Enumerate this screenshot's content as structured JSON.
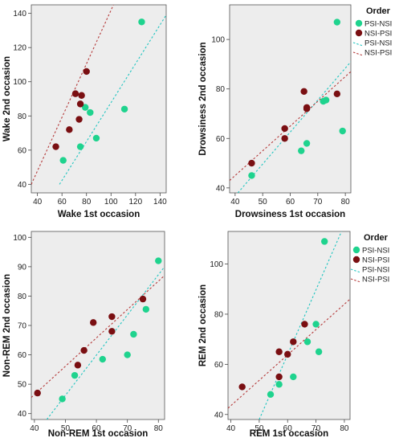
{
  "colors": {
    "psi_nsi": "#1fd38e",
    "nsi_psi": "#7a0f12",
    "psi_nsi_line": "#20c5c0",
    "nsi_psi_line": "#b53a3a",
    "plot_bg": "#ededed"
  },
  "legend": {
    "title": "Order",
    "items": [
      "PSI-NSI",
      "NSI-PSI",
      "PSI-NSI",
      "NSI-PSI"
    ]
  },
  "chart_data": [
    {
      "type": "scatter",
      "xlabel": "Wake 1st occasion",
      "ylabel": "Wake 2nd occasion",
      "xlim": [
        35,
        145
      ],
      "ylim": [
        35,
        145
      ],
      "xticks": [
        40,
        60,
        80,
        100,
        120,
        140
      ],
      "yticks": [
        40,
        60,
        80,
        100,
        120,
        140
      ],
      "legend": false,
      "series": [
        {
          "name": "PSI-NSI",
          "points": [
            [
              125,
              135
            ],
            [
              111,
              84
            ],
            [
              83,
              82
            ],
            [
              88,
              67
            ],
            [
              61,
              54
            ],
            [
              75,
              62
            ],
            [
              79,
              85
            ]
          ],
          "fit": [
            [
              58,
              40
            ],
            [
              145,
              139
            ]
          ]
        },
        {
          "name": "NSI-PSI",
          "points": [
            [
              55,
              62
            ],
            [
              66,
              72
            ],
            [
              71,
              93
            ],
            [
              74,
              78
            ],
            [
              75,
              87
            ],
            [
              76,
              92
            ],
            [
              80,
              106
            ]
          ],
          "fit": [
            [
              35,
              40
            ],
            [
              102,
              145
            ]
          ]
        }
      ]
    },
    {
      "type": "scatter",
      "xlabel": "Drowsiness 1st occasion",
      "ylabel": "Drowsiness 2nd occasion",
      "xlim": [
        38,
        82
      ],
      "ylim": [
        38,
        114
      ],
      "xticks": [
        40,
        50,
        60,
        70,
        80
      ],
      "yticks": [
        40,
        60,
        80,
        100
      ],
      "legend": true,
      "series": [
        {
          "name": "PSI-NSI",
          "points": [
            [
              77,
              107
            ],
            [
              79,
              63
            ],
            [
              72,
              75
            ],
            [
              73,
              75.5
            ],
            [
              66,
              58
            ],
            [
              64,
              55
            ],
            [
              46,
              45
            ]
          ],
          "fit": [
            [
              41,
              38
            ],
            [
              82,
              91
            ]
          ]
        },
        {
          "name": "NSI-PSI",
          "points": [
            [
              46,
              50
            ],
            [
              58,
              60
            ],
            [
              58,
              64
            ],
            [
              65,
              79
            ],
            [
              66,
              72
            ],
            [
              66,
              72.5
            ],
            [
              77,
              78
            ]
          ],
          "fit": [
            [
              38,
              43
            ],
            [
              82,
              87
            ]
          ]
        }
      ]
    },
    {
      "type": "scatter",
      "xlabel": "Non-REM 1st occasion",
      "ylabel": "Non-REM 2nd occasion",
      "xlim": [
        39,
        82
      ],
      "ylim": [
        38,
        102
      ],
      "xticks": [
        40,
        50,
        60,
        70,
        80
      ],
      "yticks": [
        40,
        50,
        60,
        70,
        80,
        90,
        100
      ],
      "legend": false,
      "series": [
        {
          "name": "PSI-NSI",
          "points": [
            [
              80,
              92
            ],
            [
              76,
              75.5
            ],
            [
              72,
              67
            ],
            [
              70,
              60
            ],
            [
              62,
              58.5
            ],
            [
              53,
              53
            ],
            [
              49,
              45
            ]
          ],
          "fit": [
            [
              44,
              38
            ],
            [
              82,
              90
            ]
          ]
        },
        {
          "name": "NSI-PSI",
          "points": [
            [
              41,
              47
            ],
            [
              54,
              56.5
            ],
            [
              56,
              61.5
            ],
            [
              59,
              71
            ],
            [
              65,
              73
            ],
            [
              65,
              68
            ],
            [
              75,
              79
            ]
          ],
          "fit": [
            [
              39,
              45.5
            ],
            [
              82,
              87
            ]
          ]
        }
      ]
    },
    {
      "type": "scatter",
      "xlabel": "REM 1st occasion",
      "ylabel": "REM 2nd occasion",
      "xlim": [
        39,
        82
      ],
      "ylim": [
        38,
        113
      ],
      "xticks": [
        40,
        50,
        60,
        70,
        80
      ],
      "yticks": [
        40,
        60,
        80,
        100
      ],
      "legend": true,
      "series": [
        {
          "name": "PSI-NSI",
          "points": [
            [
              73,
              109
            ],
            [
              70,
              76
            ],
            [
              71,
              65
            ],
            [
              67,
              69
            ],
            [
              62,
              55
            ],
            [
              57,
              52
            ],
            [
              54,
              48
            ]
          ],
          "fit": [
            [
              50,
              38
            ],
            [
              79,
              113
            ]
          ]
        },
        {
          "name": "NSI-PSI",
          "points": [
            [
              44,
              51
            ],
            [
              57,
              55
            ],
            [
              57,
              65
            ],
            [
              60,
              64
            ],
            [
              62,
              69
            ],
            [
              66,
              76
            ]
          ],
          "fit": [
            [
              39,
              42.5
            ],
            [
              82,
              86
            ]
          ]
        }
      ]
    }
  ]
}
